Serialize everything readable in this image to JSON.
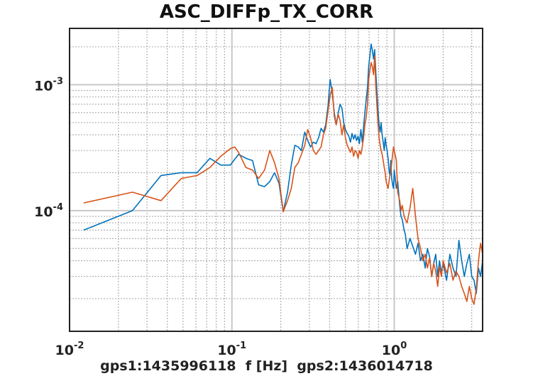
{
  "chart_data": {
    "type": "line",
    "title": "ASC_DIFFp_TX_CORR",
    "xlabel": "gps1:1435996118  f [Hz]  gps2:1436014718",
    "ylabel": "",
    "xscale": "log",
    "yscale": "log",
    "xlim": [
      0.01,
      3.5
    ],
    "ylim": [
      1.1e-05,
      0.0028
    ],
    "grid": true,
    "x_ticks": [
      {
        "value": 0.01,
        "base": "10",
        "exp": "-2"
      },
      {
        "value": 0.1,
        "base": "10",
        "exp": "-1"
      },
      {
        "value": 1,
        "base": "10",
        "exp": "0"
      }
    ],
    "y_ticks": [
      {
        "value": 0.0001,
        "base": "10",
        "exp": "-4"
      },
      {
        "value": 0.001,
        "base": "10",
        "exp": "-3"
      }
    ],
    "series": [
      {
        "color": "#0072BD",
        "points": [
          [
            0.0122,
            7e-05
          ],
          [
            0.0244,
            0.0001
          ],
          [
            0.0366,
            0.00019
          ],
          [
            0.0488,
            0.0002
          ],
          [
            0.061,
            0.0002
          ],
          [
            0.0732,
            0.00026
          ],
          [
            0.0854,
            0.00023
          ],
          [
            0.0976,
            0.00023
          ],
          [
            0.11,
            0.00028
          ],
          [
            0.122,
            0.00026
          ],
          [
            0.134,
            0.00025
          ],
          [
            0.146,
            0.00016
          ],
          [
            0.159,
            0.000155
          ],
          [
            0.171,
            0.00017
          ],
          [
            0.183,
            0.0002
          ],
          [
            0.195,
            0.000165
          ],
          [
            0.207,
            9.8e-05
          ],
          [
            0.22,
            0.00014
          ],
          [
            0.232,
            0.00023
          ],
          [
            0.244,
            0.00033
          ],
          [
            0.256,
            0.00032
          ],
          [
            0.268,
            0.0003
          ],
          [
            0.281,
            0.00042
          ],
          [
            0.293,
            0.00036
          ],
          [
            0.305,
            0.00032
          ],
          [
            0.317,
            0.00035
          ],
          [
            0.33,
            0.00034
          ],
          [
            0.342,
            0.00038
          ],
          [
            0.354,
            0.00045
          ],
          [
            0.366,
            0.00042
          ],
          [
            0.378,
            0.00048
          ],
          [
            0.391,
            0.00068
          ],
          [
            0.403,
            0.0011
          ],
          [
            0.415,
            0.00085
          ],
          [
            0.427,
            0.0006
          ],
          [
            0.439,
            0.00048
          ],
          [
            0.452,
            0.0006
          ],
          [
            0.464,
            0.0007
          ],
          [
            0.476,
            0.00065
          ],
          [
            0.488,
            0.0005
          ],
          [
            0.5,
            0.00044
          ],
          [
            0.513,
            0.00041
          ],
          [
            0.525,
            0.00039
          ],
          [
            0.537,
            0.00035
          ],
          [
            0.549,
            0.00041
          ],
          [
            0.562,
            0.00037
          ],
          [
            0.574,
            0.0004
          ],
          [
            0.586,
            0.00036
          ],
          [
            0.598,
            0.00039
          ],
          [
            0.61,
            0.00034
          ],
          [
            0.623,
            0.00044
          ],
          [
            0.635,
            0.00035
          ],
          [
            0.647,
            0.00046
          ],
          [
            0.659,
            0.0006
          ],
          [
            0.671,
            0.00075
          ],
          [
            0.684,
            0.00095
          ],
          [
            0.696,
            0.0014
          ],
          [
            0.708,
            0.0017
          ],
          [
            0.72,
            0.0021
          ],
          [
            0.732,
            0.0019
          ],
          [
            0.745,
            0.0016
          ],
          [
            0.757,
            0.0019
          ],
          [
            0.769,
            0.0013
          ],
          [
            0.781,
            0.0009
          ],
          [
            0.793,
            0.00065
          ],
          [
            0.806,
            0.00048
          ],
          [
            0.818,
            0.00042
          ],
          [
            0.83,
            0.0005
          ],
          [
            0.842,
            0.0004
          ],
          [
            0.854,
            0.00035
          ],
          [
            0.867,
            0.0003
          ],
          [
            0.879,
            0.00038
          ],
          [
            0.891,
            0.00033
          ],
          [
            0.903,
            0.0003
          ],
          [
            0.916,
            0.00026
          ],
          [
            0.928,
            0.00021
          ],
          [
            0.94,
            0.00019
          ],
          [
            0.952,
            0.00025
          ],
          [
            0.964,
            0.00018
          ],
          [
            0.977,
            0.00016
          ],
          [
            0.989,
            0.00015
          ],
          [
            1.0,
            0.00021
          ],
          [
            1.03,
            0.00015
          ],
          [
            1.05,
            0.00017
          ],
          [
            1.08,
            0.00011
          ],
          [
            1.1,
            9e-05
          ],
          [
            1.12,
            8.5e-05
          ],
          [
            1.15,
            7e-05
          ],
          [
            1.17,
            6.5e-05
          ],
          [
            1.2,
            5e-05
          ],
          [
            1.25,
            6e-05
          ],
          [
            1.3,
            5.2e-05
          ],
          [
            1.35,
            4.5e-05
          ],
          [
            1.4,
            5.5e-05
          ],
          [
            1.45,
            4e-05
          ],
          [
            1.5,
            4.5e-05
          ],
          [
            1.55,
            3.5e-05
          ],
          [
            1.6,
            5e-05
          ],
          [
            1.65,
            4.3e-05
          ],
          [
            1.7,
            3e-05
          ],
          [
            1.75,
            3.8e-05
          ],
          [
            1.8,
            4.5e-05
          ],
          [
            1.85,
            3e-05
          ],
          [
            1.9,
            4e-05
          ],
          [
            1.95,
            3.2e-05
          ],
          [
            2.0,
            3.8e-05
          ],
          [
            2.1,
            2.8e-05
          ],
          [
            2.2,
            4.5e-05
          ],
          [
            2.3,
            3.5e-05
          ],
          [
            2.4,
            3e-05
          ],
          [
            2.5,
            5.8e-05
          ],
          [
            2.6,
            4e-05
          ],
          [
            2.7,
            3e-05
          ],
          [
            2.8,
            3.8e-05
          ],
          [
            2.9,
            4.5e-05
          ],
          [
            3.0,
            3e-05
          ],
          [
            3.1,
            2.8e-05
          ],
          [
            3.2,
            2.2e-05
          ],
          [
            3.3,
            3.5e-05
          ],
          [
            3.4,
            3e-05
          ],
          [
            3.5,
            4e-05
          ]
        ]
      },
      {
        "color": "#D95319",
        "points": [
          [
            0.0122,
            0.000115
          ],
          [
            0.0244,
            0.00014
          ],
          [
            0.0366,
            0.00012
          ],
          [
            0.0488,
            0.00018
          ],
          [
            0.061,
            0.00019
          ],
          [
            0.0732,
            0.00022
          ],
          [
            0.0854,
            0.00027
          ],
          [
            0.0976,
            0.00031
          ],
          [
            0.104,
            0.00032
          ],
          [
            0.11,
            0.00029
          ],
          [
            0.122,
            0.00022
          ],
          [
            0.134,
            0.00021
          ],
          [
            0.146,
            0.00018
          ],
          [
            0.159,
            0.00021
          ],
          [
            0.171,
            0.0003
          ],
          [
            0.183,
            0.00024
          ],
          [
            0.195,
            0.00018
          ],
          [
            0.207,
            9.8e-05
          ],
          [
            0.22,
            0.00012
          ],
          [
            0.232,
            0.00015
          ],
          [
            0.244,
            0.00022
          ],
          [
            0.256,
            0.00024
          ],
          [
            0.268,
            0.00028
          ],
          [
            0.281,
            0.00033
          ],
          [
            0.293,
            0.00044
          ],
          [
            0.305,
            0.00038
          ],
          [
            0.317,
            0.0003
          ],
          [
            0.33,
            0.00028
          ],
          [
            0.342,
            0.0003
          ],
          [
            0.354,
            0.00032
          ],
          [
            0.366,
            0.0004
          ],
          [
            0.378,
            0.00045
          ],
          [
            0.391,
            0.00062
          ],
          [
            0.403,
            0.00082
          ],
          [
            0.415,
            0.00095
          ],
          [
            0.427,
            0.00056
          ],
          [
            0.439,
            0.00048
          ],
          [
            0.452,
            0.00058
          ],
          [
            0.464,
            0.00052
          ],
          [
            0.476,
            0.0004
          ],
          [
            0.488,
            0.00048
          ],
          [
            0.5,
            0.00038
          ],
          [
            0.513,
            0.00033
          ],
          [
            0.525,
            0.00031
          ],
          [
            0.537,
            0.00029
          ],
          [
            0.549,
            0.00032
          ],
          [
            0.562,
            0.00027
          ],
          [
            0.574,
            0.0003
          ],
          [
            0.586,
            0.00029
          ],
          [
            0.598,
            0.00026
          ],
          [
            0.61,
            0.0003
          ],
          [
            0.623,
            0.00028
          ],
          [
            0.635,
            0.00032
          ],
          [
            0.647,
            0.00038
          ],
          [
            0.659,
            0.00048
          ],
          [
            0.671,
            0.00055
          ],
          [
            0.684,
            0.0007
          ],
          [
            0.696,
            0.0011
          ],
          [
            0.708,
            0.0013
          ],
          [
            0.72,
            0.0015
          ],
          [
            0.732,
            0.0014
          ],
          [
            0.745,
            0.0012
          ],
          [
            0.757,
            0.0017
          ],
          [
            0.769,
            0.001
          ],
          [
            0.781,
            0.0007
          ],
          [
            0.793,
            0.0005
          ],
          [
            0.806,
            0.00038
          ],
          [
            0.818,
            0.00033
          ],
          [
            0.83,
            0.0003
          ],
          [
            0.842,
            0.00028
          ],
          [
            0.854,
            0.00025
          ],
          [
            0.867,
            0.00022
          ],
          [
            0.879,
            0.0002
          ],
          [
            0.891,
            0.00017
          ],
          [
            0.903,
            0.00016
          ],
          [
            0.916,
            0.00015
          ],
          [
            0.928,
            0.00017
          ],
          [
            0.94,
            0.00019
          ],
          [
            0.952,
            0.0002
          ],
          [
            0.964,
            0.00024
          ],
          [
            0.977,
            0.00028
          ],
          [
            0.989,
            0.00032
          ],
          [
            1.0,
            0.0003
          ],
          [
            1.03,
            0.00025
          ],
          [
            1.05,
            0.00014
          ],
          [
            1.08,
            0.00012
          ],
          [
            1.1,
            0.0001
          ],
          [
            1.12,
            0.00011
          ],
          [
            1.15,
            9e-05
          ],
          [
            1.17,
            8.5e-05
          ],
          [
            1.2,
            8e-05
          ],
          [
            1.25,
            0.000105
          ],
          [
            1.3,
            0.00015
          ],
          [
            1.35,
            9e-05
          ],
          [
            1.4,
            6e-05
          ],
          [
            1.45,
            5e-05
          ],
          [
            1.5,
            4e-05
          ],
          [
            1.55,
            4.5e-05
          ],
          [
            1.6,
            3.5e-05
          ],
          [
            1.65,
            4.2e-05
          ],
          [
            1.7,
            3e-05
          ],
          [
            1.75,
            3.8e-05
          ],
          [
            1.8,
            3.3e-05
          ],
          [
            1.85,
            2.5e-05
          ],
          [
            1.9,
            3.6e-05
          ],
          [
            1.95,
            3e-05
          ],
          [
            2.0,
            4e-05
          ],
          [
            2.1,
            3.2e-05
          ],
          [
            2.2,
            3.8e-05
          ],
          [
            2.3,
            2.8e-05
          ],
          [
            2.4,
            3.3e-05
          ],
          [
            2.5,
            3e-05
          ],
          [
            2.6,
            2.5e-05
          ],
          [
            2.7,
            2.2e-05
          ],
          [
            2.8,
            1.9e-05
          ],
          [
            2.9,
            2.5e-05
          ],
          [
            3.0,
            2e-05
          ],
          [
            3.1,
            1.8e-05
          ],
          [
            3.2,
            2.4e-05
          ],
          [
            3.3,
            4e-05
          ],
          [
            3.4,
            5.5e-05
          ],
          [
            3.5,
            4.5e-05
          ]
        ]
      }
    ]
  }
}
